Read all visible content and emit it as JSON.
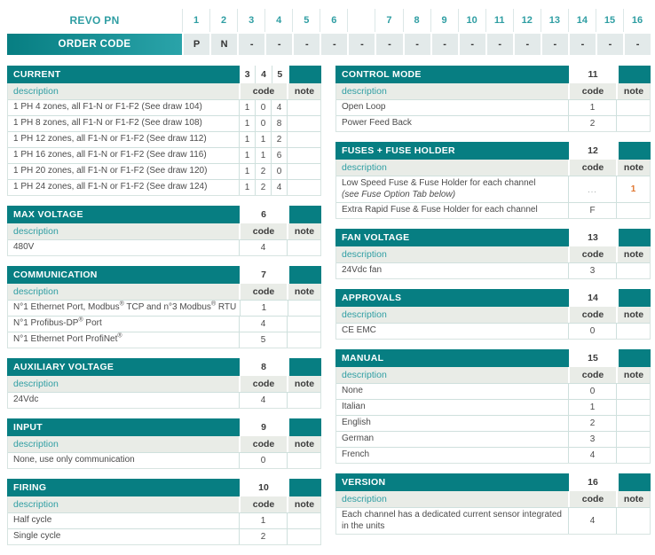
{
  "colors": {
    "teal": "#077e82",
    "teal_light": "#2aa3a9",
    "note_orange": "#e0762f"
  },
  "header": {
    "product_label": "REVO PN",
    "order_code_label": "ORDER CODE",
    "columns": [
      "1",
      "2",
      "3",
      "4",
      "5",
      "6",
      "",
      "7",
      "8",
      "9",
      "10",
      "11",
      "12",
      "13",
      "14",
      "15",
      "16"
    ],
    "order_values": [
      "P",
      "N",
      "-",
      "-",
      "-",
      "-",
      "-",
      "-",
      "-",
      "-",
      "-",
      "-",
      "-",
      "-",
      "-",
      "-",
      "-"
    ]
  },
  "labels": {
    "description": "description",
    "code": "code",
    "note": "note"
  },
  "sections_left": [
    {
      "title": "CURRENT",
      "positions": [
        "3",
        "4",
        "5"
      ],
      "rows": [
        {
          "description": "1 PH 4 zones, all F1-N or F1-F2  (See draw 104)",
          "code": [
            "1",
            "0",
            "4"
          ],
          "note": ""
        },
        {
          "description": "1 PH 8 zones, all F1-N or F1-F2  (See draw 108)",
          "code": [
            "1",
            "0",
            "8"
          ],
          "note": ""
        },
        {
          "description": "1 PH 12 zones, all F1-N or F1-F2  (See draw 112)",
          "code": [
            "1",
            "1",
            "2"
          ],
          "note": ""
        },
        {
          "description": "1 PH 16 zones, all F1-N or F1-F2  (See draw 116)",
          "code": [
            "1",
            "1",
            "6"
          ],
          "note": ""
        },
        {
          "description": "1 PH 20 zones, all F1-N or F1-F2  (See draw 120)",
          "code": [
            "1",
            "2",
            "0"
          ],
          "note": ""
        },
        {
          "description": "1 PH 24 zones, all F1-N or F1-F2  (See draw 124)",
          "code": [
            "1",
            "2",
            "4"
          ],
          "note": ""
        }
      ]
    },
    {
      "title": "MAX VOLTAGE",
      "positions": [
        "6"
      ],
      "rows": [
        {
          "description": "480V",
          "code": "4",
          "note": ""
        }
      ]
    },
    {
      "title": "COMMUNICATION",
      "positions": [
        "7"
      ],
      "rows": [
        {
          "description": "N°1 Ethernet Port, Modbus® TCP and n°3 Modbus® RTU",
          "code": "1",
          "note": ""
        },
        {
          "description": "N°1 Profibus-DP® Port",
          "code": "4",
          "note": ""
        },
        {
          "description": "N°1 Ethernet Port ProfiNet®",
          "code": "5",
          "note": ""
        }
      ]
    },
    {
      "title": "AUXILIARY VOLTAGE",
      "positions": [
        "8"
      ],
      "rows": [
        {
          "description": "24Vdc",
          "code": "4",
          "note": ""
        }
      ]
    },
    {
      "title": "INPUT",
      "positions": [
        "9"
      ],
      "rows": [
        {
          "description": "None, use only communication",
          "code": "0",
          "note": ""
        }
      ]
    },
    {
      "title": "FIRING",
      "positions": [
        "10"
      ],
      "rows": [
        {
          "description": "Half cycle",
          "code": "1",
          "note": ""
        },
        {
          "description": "Single cycle",
          "code": "2",
          "note": ""
        }
      ]
    }
  ],
  "sections_right": [
    {
      "title": "CONTROL MODE",
      "positions": [
        "11"
      ],
      "rows": [
        {
          "description": "Open Loop",
          "code": "1",
          "note": ""
        },
        {
          "description": "Power Feed Back",
          "code": "2",
          "note": ""
        }
      ]
    },
    {
      "title": "FUSES + FUSE HOLDER",
      "positions": [
        "12"
      ],
      "rows": [
        {
          "description": "Low Speed Fuse & Fuse Holder for each channel",
          "description_italic": "(see Fuse Option Tab below)",
          "code": "...",
          "note": "1"
        },
        {
          "description": "Extra Rapid Fuse & Fuse Holder for each channel",
          "code": "F",
          "note": ""
        }
      ]
    },
    {
      "title": "FAN VOLTAGE",
      "positions": [
        "13"
      ],
      "rows": [
        {
          "description": "24Vdc fan",
          "code": "3",
          "note": ""
        }
      ]
    },
    {
      "title": "APPROVALS",
      "positions": [
        "14"
      ],
      "rows": [
        {
          "description": "CE EMC",
          "code": "0",
          "note": ""
        }
      ]
    },
    {
      "title": "MANUAL",
      "positions": [
        "15"
      ],
      "rows": [
        {
          "description": "None",
          "code": "0",
          "note": ""
        },
        {
          "description": "Italian",
          "code": "1",
          "note": ""
        },
        {
          "description": "English",
          "code": "2",
          "note": ""
        },
        {
          "description": "German",
          "code": "3",
          "note": ""
        },
        {
          "description": "French",
          "code": "4",
          "note": ""
        }
      ]
    },
    {
      "title": "VERSION",
      "positions": [
        "16"
      ],
      "rows": [
        {
          "description": "Each channel has a dedicated current sensor integrated in the units",
          "code": "4",
          "note": "",
          "wrap": true
        }
      ]
    }
  ]
}
